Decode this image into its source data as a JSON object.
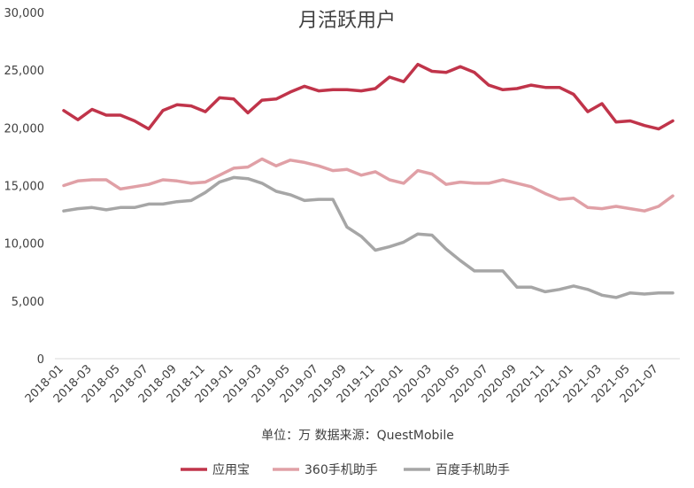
{
  "chart_data": {
    "type": "line",
    "title": "月活跃用户",
    "unit_note": "单位：万  数据来源：QuestMobile",
    "ylim": [
      0,
      30000
    ],
    "ytick_values": [
      0,
      5000,
      10000,
      15000,
      20000,
      25000,
      30000
    ],
    "ytick_labels": [
      "0",
      "5,000",
      "10,000",
      "15,000",
      "20,000",
      "25,000",
      "30,000"
    ],
    "categories": [
      "2018-01",
      "2018-02",
      "2018-03",
      "2018-04",
      "2018-05",
      "2018-06",
      "2018-07",
      "2018-08",
      "2018-09",
      "2018-10",
      "2018-11",
      "2018-12",
      "2019-01",
      "2019-02",
      "2019-03",
      "2019-04",
      "2019-05",
      "2019-06",
      "2019-07",
      "2019-08",
      "2019-09",
      "2019-10",
      "2019-11",
      "2019-12",
      "2020-01",
      "2020-02",
      "2020-03",
      "2020-04",
      "2020-05",
      "2020-06",
      "2020-07",
      "2020-08",
      "2020-09",
      "2020-10",
      "2020-11",
      "2020-12",
      "2021-01",
      "2021-02",
      "2021-03",
      "2021-04",
      "2021-05",
      "2021-06",
      "2021-07",
      "2021-08"
    ],
    "xtick_labels": [
      "2018-01",
      "2018-03",
      "2018-05",
      "2018-07",
      "2018-09",
      "2018-11",
      "2019-01",
      "2019-03",
      "2019-05",
      "2019-07",
      "2019-09",
      "2019-11",
      "2020-01",
      "2020-03",
      "2020-05",
      "2020-07",
      "2020-09",
      "2020-11",
      "2021-01",
      "2021-03",
      "2021-05",
      "2021-07"
    ],
    "series": [
      {
        "name": "应用宝",
        "color": "#c0344a",
        "values": [
          21500,
          20700,
          21600,
          21100,
          21100,
          20600,
          19900,
          21500,
          22000,
          21900,
          21400,
          22600,
          22500,
          21300,
          22400,
          22500,
          23100,
          23600,
          23200,
          23300,
          23300,
          23200,
          23400,
          24400,
          24000,
          25500,
          24900,
          24800,
          25300,
          24800,
          23700,
          23300,
          23400,
          23700,
          23500,
          23500,
          22900,
          21400,
          22100,
          20500,
          20600,
          20200,
          19900,
          20600
        ]
      },
      {
        "name": "360手机助手",
        "color": "#e0a0a6",
        "values": [
          15000,
          15400,
          15500,
          15500,
          14700,
          14900,
          15100,
          15500,
          15400,
          15200,
          15300,
          15900,
          16500,
          16600,
          17300,
          16700,
          17200,
          17000,
          16700,
          16300,
          16400,
          15900,
          16200,
          15500,
          15200,
          16300,
          16000,
          15100,
          15300,
          15200,
          15200,
          15500,
          15200,
          14900,
          14300,
          13800,
          13900,
          13100,
          13000,
          13200,
          13000,
          12800,
          13200,
          14100
        ]
      },
      {
        "name": "百度手机助手",
        "color": "#a6a6a6",
        "values": [
          12800,
          13000,
          13100,
          12900,
          13100,
          13100,
          13400,
          13400,
          13600,
          13700,
          14400,
          15300,
          15700,
          15600,
          15200,
          14500,
          14200,
          13700,
          13800,
          13800,
          11400,
          10600,
          9400,
          9700,
          10100,
          10800,
          10700,
          9500,
          8500,
          7600,
          7600,
          7600,
          6200,
          6200,
          5800,
          6000,
          6300,
          6000,
          5500,
          5300,
          5700,
          5600,
          5700,
          5700
        ]
      }
    ]
  }
}
